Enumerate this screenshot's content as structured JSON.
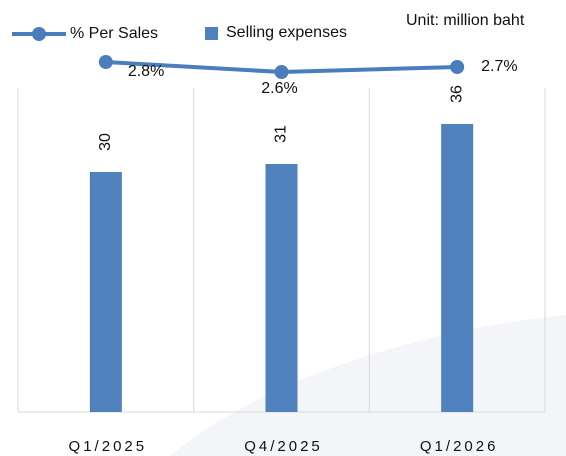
{
  "chart_data": {
    "type": "bar_line",
    "annotation": "Unit: million baht",
    "categories": [
      "Q1/2025",
      "Q4/2025",
      "Q1/2026"
    ],
    "series": [
      {
        "name": "Selling expenses",
        "type": "bar",
        "color": "#4f81bd",
        "values": [
          30,
          31,
          36
        ]
      },
      {
        "name": "% Per Sales",
        "type": "line",
        "axis": "y2",
        "color": "#4a7ebb",
        "values": [
          2.8,
          2.6,
          2.7
        ],
        "value_labels": [
          "2.8%",
          "2.6%",
          "2.7%"
        ]
      }
    ],
    "ylim": [
      0,
      40
    ],
    "y2lim": [
      -4.2,
      2.2
    ],
    "grid": true
  }
}
